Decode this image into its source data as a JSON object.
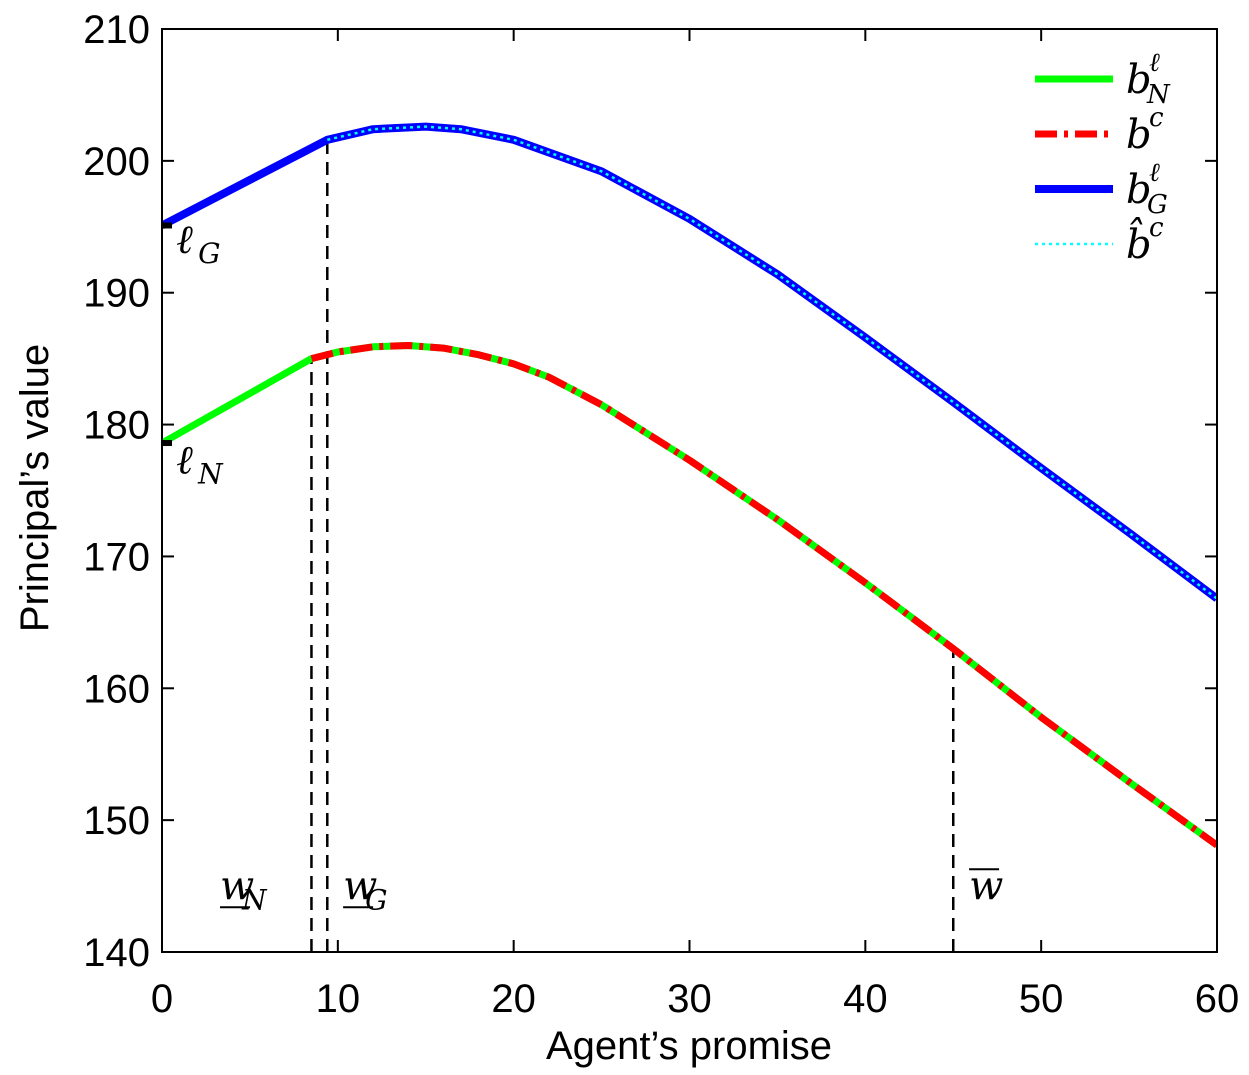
{
  "chart_data": {
    "type": "line",
    "title": "",
    "xlabel": "Agent’s promise",
    "ylabel": "Principal’s value",
    "xlim": [
      0,
      60
    ],
    "ylim": [
      140,
      210
    ],
    "xticks": [
      0,
      10,
      20,
      30,
      40,
      50,
      60
    ],
    "yticks": [
      140,
      150,
      160,
      170,
      180,
      190,
      200,
      210
    ],
    "grid": false,
    "legend_position": "top-right",
    "series": [
      {
        "name": "b_N^ℓ",
        "legend_main": "b",
        "legend_sup": "ℓ",
        "legend_sub": "N",
        "color": "#00ff00",
        "style": "solid",
        "x": [
          0,
          8.5,
          10,
          12,
          14,
          16,
          18,
          20,
          22,
          25,
          30,
          35,
          40,
          45,
          50,
          55,
          60
        ],
        "y": [
          178.6,
          185.0,
          185.5,
          185.9,
          186.0,
          185.8,
          185.3,
          184.6,
          183.6,
          181.5,
          177.3,
          172.8,
          168.0,
          163.0,
          157.8,
          152.9,
          148.1
        ]
      },
      {
        "name": "b^c",
        "legend_main": "b",
        "legend_sup": "c",
        "legend_sub": "",
        "color": "#ff0000",
        "style": "dashdot",
        "x": [
          8.5,
          10,
          12,
          14,
          16,
          18,
          20,
          22,
          25,
          30,
          35,
          40,
          45,
          50,
          55,
          60
        ],
        "y": [
          185.0,
          185.5,
          185.9,
          186.0,
          185.8,
          185.3,
          184.6,
          183.6,
          181.5,
          177.3,
          172.8,
          168.0,
          163.0,
          157.8,
          152.9,
          148.1
        ]
      },
      {
        "name": "b_G^ℓ",
        "legend_main": "b",
        "legend_sup": "ℓ",
        "legend_sub": "G",
        "color": "#0000ff",
        "style": "solid",
        "x": [
          0,
          9.4,
          12,
          15,
          17,
          20,
          25,
          30,
          35,
          40,
          45,
          50,
          55,
          60
        ],
        "y": [
          195.1,
          201.6,
          202.4,
          202.6,
          202.4,
          201.6,
          199.2,
          195.6,
          191.4,
          186.6,
          181.7,
          176.7,
          171.8,
          166.8
        ]
      },
      {
        "name": "b̂^c",
        "legend_main": "b̂",
        "legend_sup": "c",
        "legend_sub": "",
        "color": "#00ffff",
        "style": "dotted",
        "x": [
          9.4,
          12,
          15,
          17,
          20,
          25,
          30,
          35,
          40,
          45,
          50,
          55,
          60
        ],
        "y": [
          201.6,
          202.4,
          202.6,
          202.4,
          201.6,
          199.2,
          195.6,
          191.4,
          186.6,
          181.7,
          176.7,
          171.8,
          166.8
        ]
      }
    ],
    "vertical_lines": [
      {
        "x": 8.5,
        "y_top": 185.0
      },
      {
        "x": 9.4,
        "y_top": 201.6
      },
      {
        "x": 45,
        "y_top": 163.0
      }
    ],
    "annotations": [
      {
        "id": "ellG",
        "main": "ℓ",
        "sub": "G",
        "x": 0.8,
        "y": 193.0
      },
      {
        "id": "ellN",
        "main": "ℓ",
        "sub": "N",
        "x": 0.8,
        "y": 176.3
      },
      {
        "id": "wN",
        "main": "w",
        "sub": "N",
        "underline": true,
        "x": 3.3,
        "y": 144.0
      },
      {
        "id": "wG",
        "main": "w",
        "sub": "G",
        "underline": true,
        "x": 10.3,
        "y": 144.0
      },
      {
        "id": "wbar",
        "main": "w",
        "sub": "",
        "overline": true,
        "x": 45.9,
        "y": 144.0
      }
    ]
  }
}
